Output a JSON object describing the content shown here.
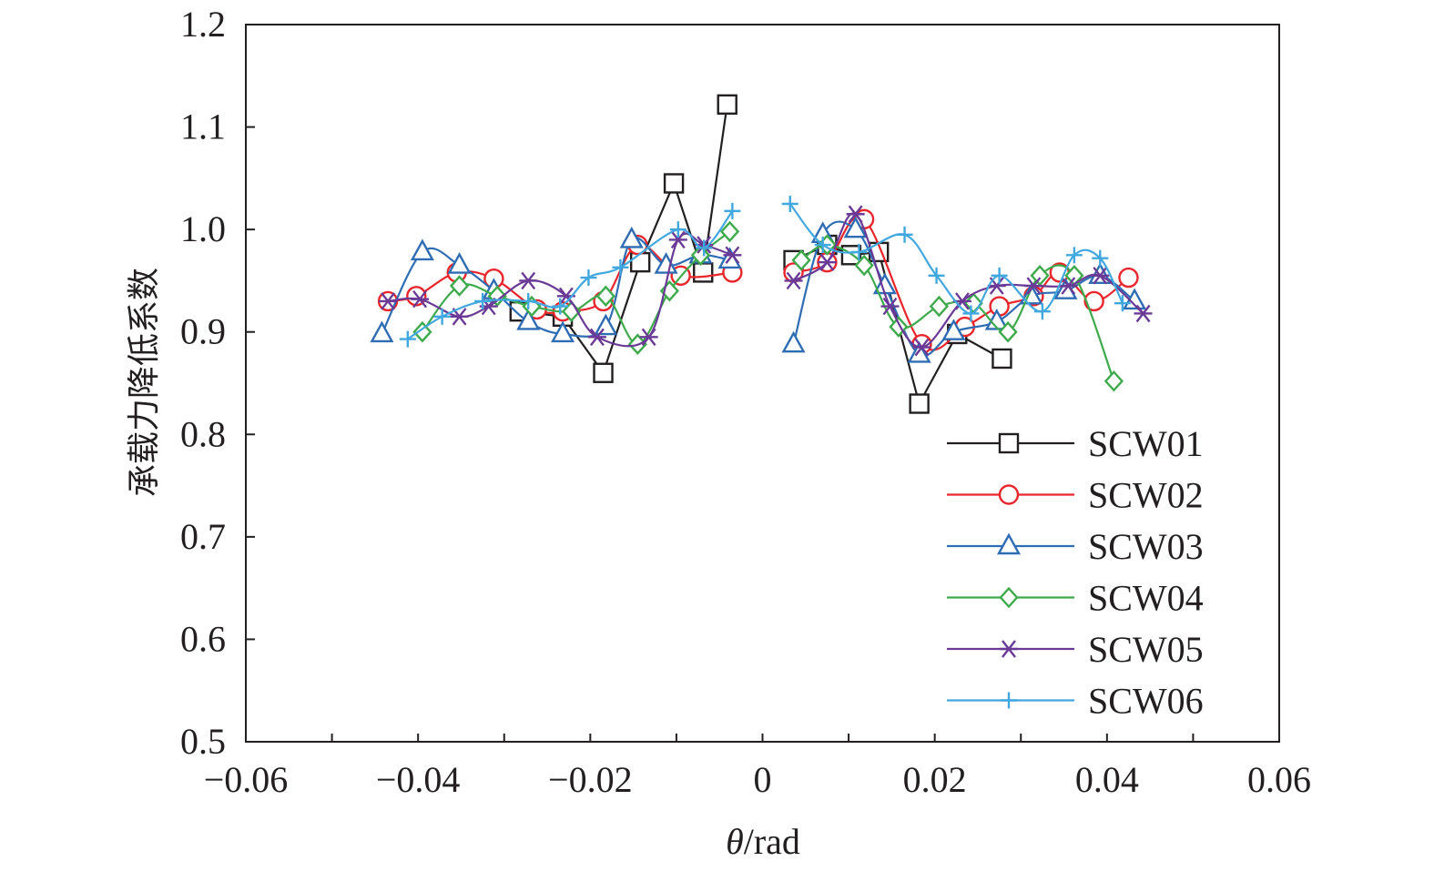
{
  "chart_data": {
    "type": "line",
    "title": "",
    "xlabel_italic": "θ",
    "xlabel_rest": "/rad",
    "ylabel": "承载力降低系数",
    "xlim": [
      -0.06,
      0.06
    ],
    "ylim": [
      0.5,
      1.2
    ],
    "x_ticks": [
      -0.06,
      -0.04,
      -0.02,
      0,
      0.02,
      0.04,
      0.06
    ],
    "x_tick_labels": [
      "−0.06",
      "−0.04",
      "−0.02",
      "0",
      "0.02",
      "0.04",
      "0.06"
    ],
    "y_ticks": [
      0.5,
      0.6,
      0.7,
      0.8,
      0.9,
      1.0,
      1.1,
      1.2
    ],
    "y_tick_labels": [
      "0.5",
      "0.6",
      "0.7",
      "0.8",
      "0.9",
      "1.0",
      "1.1",
      "1.2"
    ],
    "grid": false,
    "legend_position": "bottom-right",
    "series": [
      {
        "name": "SCW01",
        "color": "#231f20",
        "marker": "square",
        "smooth": false,
        "segments": [
          [
            [
              -0.0282,
              0.92
            ],
            [
              -0.0232,
              0.915
            ],
            [
              -0.0185,
              0.86
            ],
            [
              -0.0142,
              0.968
            ],
            [
              -0.0103,
              1.045
            ],
            [
              -0.0069,
              0.958
            ],
            [
              -0.0041,
              1.122
            ]
          ],
          [
            [
              0.0036,
              0.97
            ],
            [
              0.0075,
              0.985
            ],
            [
              0.0103,
              0.975
            ],
            [
              0.0135,
              0.978
            ],
            [
              0.0182,
              0.83
            ],
            [
              0.0226,
              0.898
            ],
            [
              0.0278,
              0.874
            ]
          ]
        ]
      },
      {
        "name": "SCW02",
        "color": "#e8262b",
        "marker": "circle",
        "smooth": true,
        "segments": [
          [
            [
              -0.0435,
              0.93
            ],
            [
              -0.0402,
              0.935
            ],
            [
              -0.0355,
              0.958
            ],
            [
              -0.0312,
              0.952
            ],
            [
              -0.0262,
              0.922
            ],
            [
              -0.0232,
              0.92
            ],
            [
              -0.0185,
              0.93
            ],
            [
              -0.0145,
              0.985
            ],
            [
              -0.0095,
              0.955
            ],
            [
              -0.0035,
              0.958
            ]
          ],
          [
            [
              0.0036,
              0.958
            ],
            [
              0.0075,
              0.968
            ],
            [
              0.0118,
              1.01
            ],
            [
              0.0185,
              0.888
            ],
            [
              0.0235,
              0.905
            ],
            [
              0.0275,
              0.925
            ],
            [
              0.0315,
              0.935
            ],
            [
              0.0345,
              0.958
            ],
            [
              0.0385,
              0.93
            ],
            [
              0.0425,
              0.953
            ]
          ]
        ]
      },
      {
        "name": "SCW03",
        "color": "#2e6db4",
        "marker": "triangle",
        "smooth": true,
        "segments": [
          [
            [
              -0.0442,
              0.898
            ],
            [
              -0.0395,
              0.978
            ],
            [
              -0.0352,
              0.965
            ],
            [
              -0.0312,
              0.94
            ],
            [
              -0.0272,
              0.91
            ],
            [
              -0.0232,
              0.898
            ],
            [
              -0.0182,
              0.905
            ],
            [
              -0.0152,
              0.99
            ],
            [
              -0.0112,
              0.965
            ],
            [
              -0.0072,
              0.975
            ],
            [
              -0.0038,
              0.97
            ]
          ],
          [
            [
              0.0036,
              0.888
            ],
            [
              0.007,
              0.995
            ],
            [
              0.0108,
              1.0
            ],
            [
              0.0142,
              0.945
            ],
            [
              0.0182,
              0.878
            ],
            [
              0.0222,
              0.9
            ],
            [
              0.0272,
              0.91
            ],
            [
              0.0312,
              0.935
            ],
            [
              0.0352,
              0.94
            ],
            [
              0.0392,
              0.955
            ],
            [
              0.0432,
              0.93
            ]
          ]
        ]
      },
      {
        "name": "SCW04",
        "color": "#3daa4b",
        "marker": "diamond",
        "smooth": true,
        "segments": [
          [
            [
              -0.0395,
              0.9
            ],
            [
              -0.0352,
              0.945
            ],
            [
              -0.0308,
              0.935
            ],
            [
              -0.0268,
              0.925
            ],
            [
              -0.0222,
              0.92
            ],
            [
              -0.0182,
              0.935
            ],
            [
              -0.0145,
              0.888
            ],
            [
              -0.0108,
              0.94
            ],
            [
              -0.0072,
              0.975
            ],
            [
              -0.0038,
              0.998
            ]
          ],
          [
            [
              0.0045,
              0.97
            ],
            [
              0.0075,
              0.985
            ],
            [
              0.0118,
              0.965
            ],
            [
              0.0158,
              0.905
            ],
            [
              0.0205,
              0.925
            ],
            [
              0.0245,
              0.928
            ],
            [
              0.0285,
              0.9
            ],
            [
              0.0322,
              0.955
            ],
            [
              0.0362,
              0.955
            ],
            [
              0.0408,
              0.852
            ]
          ]
        ]
      },
      {
        "name": "SCW05",
        "color": "#6a3a96",
        "marker": "asterisk",
        "smooth": true,
        "segments": [
          [
            [
              -0.0435,
              0.93
            ],
            [
              -0.0398,
              0.932
            ],
            [
              -0.0352,
              0.915
            ],
            [
              -0.0318,
              0.925
            ],
            [
              -0.0272,
              0.95
            ],
            [
              -0.0228,
              0.935
            ],
            [
              -0.0192,
              0.895
            ],
            [
              -0.0132,
              0.895
            ],
            [
              -0.0098,
              0.99
            ],
            [
              -0.0068,
              0.985
            ],
            [
              -0.0035,
              0.975
            ]
          ],
          [
            [
              0.0036,
              0.95
            ],
            [
              0.0075,
              0.968
            ],
            [
              0.0108,
              1.015
            ],
            [
              0.0148,
              0.925
            ],
            [
              0.0185,
              0.885
            ],
            [
              0.0232,
              0.93
            ],
            [
              0.0272,
              0.945
            ],
            [
              0.0315,
              0.945
            ],
            [
              0.0355,
              0.945
            ],
            [
              0.0392,
              0.955
            ],
            [
              0.0442,
              0.918
            ]
          ]
        ]
      },
      {
        "name": "SCW06",
        "color": "#41a8df",
        "marker": "plus",
        "smooth": true,
        "segments": [
          [
            [
              -0.0412,
              0.893
            ],
            [
              -0.0372,
              0.915
            ],
            [
              -0.0325,
              0.93
            ],
            [
              -0.0272,
              0.93
            ],
            [
              -0.0235,
              0.925
            ],
            [
              -0.0202,
              0.953
            ],
            [
              -0.0165,
              0.963
            ],
            [
              -0.0098,
              1.0
            ],
            [
              -0.0068,
              0.982
            ],
            [
              -0.0035,
              1.018
            ]
          ],
          [
            [
              0.0032,
              1.025
            ],
            [
              0.007,
              0.985
            ],
            [
              0.0112,
              0.978
            ],
            [
              0.0165,
              0.995
            ],
            [
              0.0202,
              0.955
            ],
            [
              0.0242,
              0.918
            ],
            [
              0.0275,
              0.955
            ],
            [
              0.0325,
              0.92
            ],
            [
              0.0362,
              0.975
            ],
            [
              0.0392,
              0.972
            ],
            [
              0.0418,
              0.928
            ]
          ]
        ]
      }
    ]
  }
}
